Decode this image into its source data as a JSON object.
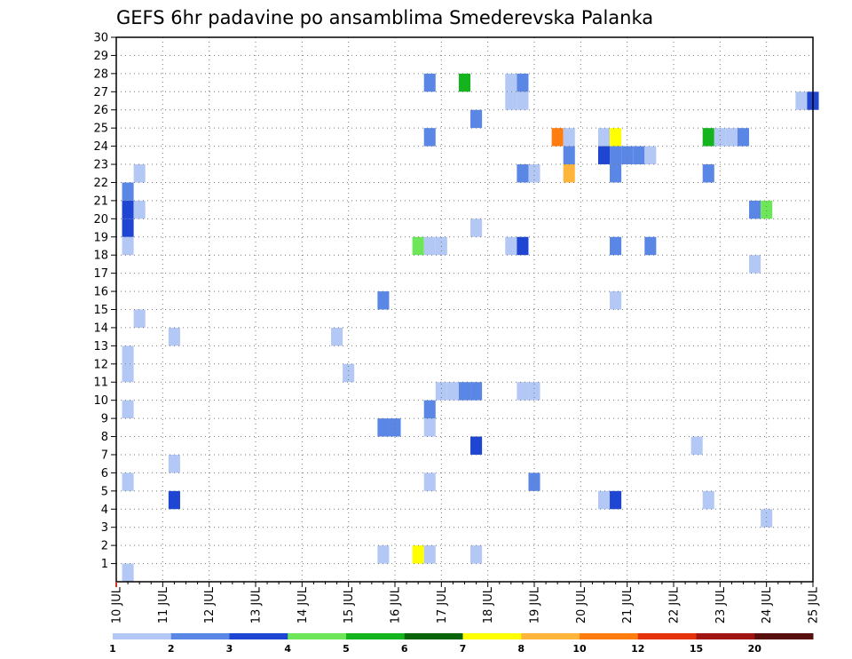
{
  "chart_data": {
    "type": "heatmap",
    "title": "GEFS 6hr padavine po ansamblima Smederevska Palanka",
    "xlabel": "",
    "ylabel": "",
    "x_unit": "days since 10 JUL",
    "x_range": [
      0,
      15
    ],
    "y_range": [
      0,
      30
    ],
    "x_ticks": [
      "10 JUL",
      "11 JUL",
      "12 JUL",
      "13 JUL",
      "14 JUL",
      "15 JUL",
      "16 JUL",
      "17 JUL",
      "18 JUL",
      "19 JUL",
      "20 JUL",
      "21 JUL",
      "22 JUL",
      "23 JUL",
      "24 JUL",
      "25 JUL"
    ],
    "y_ticks": [
      "1",
      "2",
      "3",
      "4",
      "5",
      "6",
      "7",
      "8",
      "9",
      "10",
      "11",
      "12",
      "13",
      "14",
      "15",
      "16",
      "17",
      "18",
      "19",
      "20",
      "21",
      "22",
      "23",
      "24",
      "25",
      "26",
      "27",
      "28",
      "29",
      "30"
    ],
    "grid": true,
    "legend": {
      "placement": "bottom",
      "labels": [
        "1",
        "2",
        "3",
        "4",
        "5",
        "6",
        "7",
        "8",
        "10",
        "12",
        "15",
        "20"
      ],
      "colors": [
        "#b4c8f5",
        "#5a87e6",
        "#1e46d2",
        "#6ee65a",
        "#14b41e",
        "#0a640a",
        "#ffff00",
        "#ffb43c",
        "#ff7d0f",
        "#e6320a",
        "#a01414",
        "#5a0f0f"
      ]
    },
    "cells": [
      {
        "t": 0.25,
        "m": 0,
        "v": 1
      },
      {
        "t": 0.25,
        "m": 5,
        "v": 1
      },
      {
        "t": 1.25,
        "m": 4,
        "v": 3
      },
      {
        "t": 1.25,
        "m": 6,
        "v": 1
      },
      {
        "t": 0.25,
        "m": 9,
        "v": 1
      },
      {
        "t": 0.25,
        "m": 11,
        "v": 1
      },
      {
        "t": 0.25,
        "m": 12,
        "v": 1
      },
      {
        "t": 1.25,
        "m": 13,
        "v": 1
      },
      {
        "t": 0.5,
        "m": 14,
        "v": 1
      },
      {
        "t": 0.25,
        "m": 18,
        "v": 1
      },
      {
        "t": 0.25,
        "m": 19,
        "v": 3
      },
      {
        "t": 0.25,
        "m": 20,
        "v": 3
      },
      {
        "t": 0.5,
        "m": 20,
        "v": 1
      },
      {
        "t": 0.25,
        "m": 21,
        "v": 2
      },
      {
        "t": 0.5,
        "m": 22,
        "v": 1
      },
      {
        "t": 4.75,
        "m": 13,
        "v": 1
      },
      {
        "t": 5.0,
        "m": 11,
        "v": 1
      },
      {
        "t": 5.75,
        "m": 1,
        "v": 1
      },
      {
        "t": 5.75,
        "m": 8,
        "v": 2
      },
      {
        "t": 6.0,
        "m": 8,
        "v": 2
      },
      {
        "t": 5.75,
        "m": 15,
        "v": 2
      },
      {
        "t": 6.5,
        "m": 1,
        "v": 7
      },
      {
        "t": 6.75,
        "m": 1,
        "v": 1
      },
      {
        "t": 6.75,
        "m": 5,
        "v": 1
      },
      {
        "t": 6.75,
        "m": 8,
        "v": 1
      },
      {
        "t": 6.75,
        "m": 9,
        "v": 2
      },
      {
        "t": 7.0,
        "m": 10,
        "v": 1
      },
      {
        "t": 7.25,
        "m": 10,
        "v": 1
      },
      {
        "t": 7.5,
        "m": 10,
        "v": 2
      },
      {
        "t": 7.75,
        "m": 10,
        "v": 2
      },
      {
        "t": 6.5,
        "m": 18,
        "v": 4
      },
      {
        "t": 6.75,
        "m": 18,
        "v": 1
      },
      {
        "t": 7.0,
        "m": 18,
        "v": 1
      },
      {
        "t": 6.75,
        "m": 24,
        "v": 2
      },
      {
        "t": 6.75,
        "m": 27,
        "v": 2
      },
      {
        "t": 7.5,
        "m": 27,
        "v": 5
      },
      {
        "t": 7.75,
        "m": 1,
        "v": 1
      },
      {
        "t": 7.75,
        "m": 7,
        "v": 3
      },
      {
        "t": 7.75,
        "m": 19,
        "v": 1
      },
      {
        "t": 7.75,
        "m": 25,
        "v": 2
      },
      {
        "t": 8.5,
        "m": 18,
        "v": 1
      },
      {
        "t": 8.75,
        "m": 18,
        "v": 3
      },
      {
        "t": 8.5,
        "m": 26,
        "v": 1
      },
      {
        "t": 8.75,
        "m": 26,
        "v": 1
      },
      {
        "t": 8.5,
        "m": 27,
        "v": 1
      },
      {
        "t": 8.75,
        "m": 27,
        "v": 2
      },
      {
        "t": 8.75,
        "m": 10,
        "v": 1
      },
      {
        "t": 9.0,
        "m": 10,
        "v": 1
      },
      {
        "t": 8.75,
        "m": 22,
        "v": 2
      },
      {
        "t": 9.0,
        "m": 22,
        "v": 1
      },
      {
        "t": 9.0,
        "m": 5,
        "v": 2
      },
      {
        "t": 9.5,
        "m": 24,
        "v": 10
      },
      {
        "t": 9.75,
        "m": 24,
        "v": 1
      },
      {
        "t": 9.75,
        "m": 23,
        "v": 2
      },
      {
        "t": 9.75,
        "m": 22,
        "v": 9
      },
      {
        "t": 10.5,
        "m": 24,
        "v": 1
      },
      {
        "t": 10.75,
        "m": 24,
        "v": 7
      },
      {
        "t": 10.5,
        "m": 23,
        "v": 3
      },
      {
        "t": 10.75,
        "m": 23,
        "v": 2
      },
      {
        "t": 11.0,
        "m": 23,
        "v": 2
      },
      {
        "t": 11.25,
        "m": 23,
        "v": 2
      },
      {
        "t": 11.5,
        "m": 23,
        "v": 1
      },
      {
        "t": 10.75,
        "m": 22,
        "v": 2
      },
      {
        "t": 10.75,
        "m": 18,
        "v": 2
      },
      {
        "t": 11.5,
        "m": 18,
        "v": 2
      },
      {
        "t": 10.75,
        "m": 15,
        "v": 1
      },
      {
        "t": 10.5,
        "m": 4,
        "v": 1
      },
      {
        "t": 10.75,
        "m": 4,
        "v": 3
      },
      {
        "t": 12.5,
        "m": 7,
        "v": 1
      },
      {
        "t": 12.75,
        "m": 24,
        "v": 5
      },
      {
        "t": 13.0,
        "m": 24,
        "v": 1
      },
      {
        "t": 13.25,
        "m": 24,
        "v": 1
      },
      {
        "t": 13.5,
        "m": 24,
        "v": 2
      },
      {
        "t": 12.75,
        "m": 22,
        "v": 2
      },
      {
        "t": 12.75,
        "m": 4,
        "v": 1
      },
      {
        "t": 13.75,
        "m": 20,
        "v": 2
      },
      {
        "t": 14.0,
        "m": 20,
        "v": 4
      },
      {
        "t": 13.75,
        "m": 17,
        "v": 1
      },
      {
        "t": 14.0,
        "m": 3,
        "v": 1
      },
      {
        "t": 14.75,
        "m": 26,
        "v": 1
      },
      {
        "t": 15.0,
        "m": 26,
        "v": 3
      }
    ]
  }
}
